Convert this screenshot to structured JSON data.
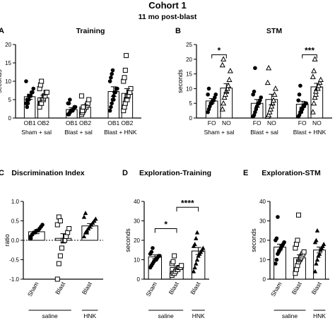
{
  "figure": {
    "title": "Cohort 1",
    "subtitle": "11 mo post-blast"
  },
  "chart_data": [
    {
      "id": "A",
      "letter": "A",
      "type": "bar",
      "title": "Training",
      "ylabel": "seconds",
      "ylim": [
        0,
        20
      ],
      "yticks": [
        0,
        5,
        10,
        15,
        20
      ],
      "groups": [
        {
          "label": "Sham + sal",
          "categories": [
            "OB1",
            "OB2"
          ],
          "values": [
            5.8,
            5.5
          ],
          "sem": [
            0.7,
            0.7
          ]
        },
        {
          "label": "Blast + sal",
          "categories": [
            "OB1",
            "OB2"
          ],
          "values": [
            2.3,
            3.0
          ],
          "sem": [
            0.5,
            0.6
          ]
        },
        {
          "label": "Blast + HNK",
          "categories": [
            "OB1",
            "OB2"
          ],
          "values": [
            7.2,
            6.7
          ],
          "sem": [
            1.3,
            1.3
          ]
        }
      ],
      "markers": [
        "filled-circle",
        "open-square"
      ],
      "points": [
        [
          4,
          5,
          5,
          6,
          6,
          6,
          7,
          7,
          8,
          10,
          3,
          4,
          5
        ],
        [
          3,
          4,
          4,
          5,
          5,
          6,
          6,
          7,
          7,
          8,
          9,
          10
        ],
        [
          1,
          1,
          1.5,
          2,
          2,
          2,
          2.5,
          3,
          3,
          4,
          4,
          5,
          2
        ],
        [
          1,
          1.5,
          2,
          2.5,
          3,
          3,
          3.5,
          4,
          5,
          6,
          2,
          3
        ],
        [
          2,
          3,
          4,
          5,
          6,
          7,
          7,
          8,
          8,
          10,
          11,
          12,
          13,
          5,
          7
        ],
        [
          2,
          3,
          4,
          5,
          6,
          6,
          7,
          7,
          8,
          10,
          11,
          13,
          17,
          5
        ]
      ],
      "significance": []
    },
    {
      "id": "B",
      "letter": "B",
      "type": "bar",
      "title": "STM",
      "ylabel": "seconds",
      "ylim": [
        0,
        25
      ],
      "yticks": [
        0,
        5,
        10,
        15,
        20,
        25
      ],
      "groups": [
        {
          "label": "Sham + sal",
          "categories": [
            "FO",
            "NO"
          ],
          "values": [
            5.8,
            10.2
          ],
          "sem": [
            0.8,
            1.5
          ]
        },
        {
          "label": "Blast + sal",
          "categories": [
            "FO",
            "NO"
          ],
          "values": [
            5.0,
            6.3
          ],
          "sem": [
            1.3,
            1.8
          ]
        },
        {
          "label": "Blast + HNK",
          "categories": [
            "FO",
            "NO"
          ],
          "values": [
            4.7,
            10.6
          ],
          "sem": [
            1.0,
            1.2
          ]
        }
      ],
      "markers": [
        "filled-circle",
        "open-triangle"
      ],
      "points": [
        [
          2,
          3,
          4,
          5,
          5,
          6,
          6,
          7,
          8,
          8,
          10
        ],
        [
          3,
          5,
          7,
          8,
          9,
          10,
          11,
          13,
          16,
          18,
          20
        ],
        [
          0.5,
          1,
          2,
          3,
          4,
          5,
          5,
          6,
          7,
          8,
          9,
          17
        ],
        [
          0.5,
          1,
          2,
          3,
          4,
          5,
          6,
          8,
          10,
          12,
          17
        ],
        [
          0.5,
          1,
          2,
          2,
          3,
          4,
          4,
          5,
          5,
          6,
          8,
          11,
          3
        ],
        [
          2,
          5,
          7,
          8,
          10,
          10,
          11,
          12,
          13,
          14,
          16,
          20,
          9
        ]
      ],
      "significance": [
        {
          "label": "*",
          "from": [
            0,
            0
          ],
          "to": [
            0,
            1
          ],
          "y": 21.5
        },
        {
          "label": "***",
          "from": [
            2,
            0
          ],
          "to": [
            2,
            1
          ],
          "y": 21.5
        }
      ]
    },
    {
      "id": "C",
      "letter": "C",
      "type": "bar",
      "title": "Discrimination Index",
      "ylabel": "ratio",
      "ylim": [
        -1.0,
        1.0
      ],
      "yticks": [
        -1.0,
        -0.5,
        0.0,
        0.5,
        1.0
      ],
      "ytick_labels": [
        "-1.0",
        "-0.5",
        "0.0",
        "0.5",
        "1.0"
      ],
      "zero_line": true,
      "categories": [
        "Sham",
        "Blast",
        "Blast"
      ],
      "values": [
        0.22,
        0.05,
        0.37
      ],
      "sem": [
        0.05,
        0.12,
        0.06
      ],
      "markers": [
        "filled-circle",
        "open-square",
        "filled-triangle"
      ],
      "points": [
        [
          0.1,
          0.15,
          0.2,
          0.2,
          0.25,
          0.25,
          0.3,
          0.35,
          0.4,
          0.05,
          0.15
        ],
        [
          -1.0,
          -0.6,
          -0.4,
          -0.2,
          0.0,
          0.0,
          0.1,
          0.2,
          0.3,
          0.4,
          0.6,
          0.5
        ],
        [
          0.1,
          0.2,
          0.25,
          0.3,
          0.35,
          0.4,
          0.45,
          0.5,
          0.55,
          0.6,
          0.7,
          0.2
        ]
      ],
      "brackets": [
        {
          "label": "saline",
          "from": 0,
          "to": 1
        },
        {
          "label": "HNK",
          "from": 2,
          "to": 2
        }
      ],
      "significance": []
    },
    {
      "id": "D",
      "letter": "D",
      "type": "bar",
      "title": "Exploration-Training",
      "ylabel": "seconds",
      "ylim": [
        0,
        40
      ],
      "yticks": [
        0,
        10,
        20,
        30,
        40
      ],
      "categories": [
        "Sham",
        "Blast",
        "Blast"
      ],
      "values": [
        11.5,
        6.0,
        14.5
      ],
      "sem": [
        1.0,
        0.8,
        1.8
      ],
      "markers": [
        "filled-circle",
        "open-square",
        "filled-triangle"
      ],
      "points": [
        [
          6,
          7,
          8,
          9,
          10,
          10,
          11,
          12,
          12,
          13,
          14,
          16
        ],
        [
          2,
          3,
          3,
          4,
          5,
          5,
          6,
          6,
          7,
          8,
          9,
          12
        ],
        [
          4,
          6,
          8,
          10,
          12,
          13,
          14,
          15,
          16,
          17,
          18,
          21,
          24
        ]
      ],
      "brackets": [
        {
          "label": "saline",
          "from": 0,
          "to": 1
        },
        {
          "label": "HNK",
          "from": 2,
          "to": 2
        }
      ],
      "significance": [
        {
          "label": "*",
          "from": 0,
          "to": 1,
          "y": 26
        },
        {
          "label": "****",
          "from": 1,
          "to": 2,
          "y": 37
        }
      ]
    },
    {
      "id": "E",
      "letter": "E",
      "type": "bar",
      "title": "Exploration-STM",
      "ylabel": "seconds",
      "ylim": [
        0,
        40
      ],
      "yticks": [
        0,
        10,
        20,
        30,
        40
      ],
      "categories": [
        "Sham",
        "Blast",
        "Blast"
      ],
      "values": [
        16.5,
        11.0,
        15.0
      ],
      "sem": [
        1.5,
        1.5,
        1.5
      ],
      "markers": [
        "filled-circle",
        "open-square",
        "filled-triangle"
      ],
      "points": [
        [
          8,
          10,
          13,
          14,
          15,
          16,
          17,
          18,
          19,
          20,
          21,
          32
        ],
        [
          3,
          5,
          7,
          9,
          10,
          11,
          12,
          13,
          14,
          16,
          18,
          20,
          33
        ],
        [
          4,
          8,
          10,
          12,
          13,
          15,
          16,
          17,
          18,
          19,
          20,
          25
        ]
      ],
      "brackets": [
        {
          "label": "saline",
          "from": 0,
          "to": 1
        },
        {
          "label": "HNK",
          "from": 2,
          "to": 2
        }
      ],
      "significance": []
    }
  ]
}
